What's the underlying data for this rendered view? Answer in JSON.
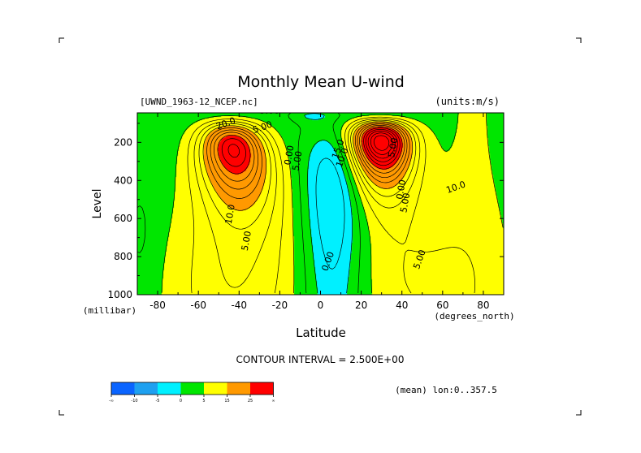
{
  "chart_data": {
    "type": "heatmap",
    "subtype": "filled-contour",
    "title": "Monthly Mean U-wind",
    "dataset_label": "[UWND_1963-12_NCEP.nc]",
    "units_label": "(units:m/s)",
    "xlabel": "Latitude",
    "x_unit_label": "(degrees_north)",
    "ylabel": "Level",
    "y_unit_label": "(millibar)",
    "xlim": [
      -90,
      90
    ],
    "ylim": [
      1000,
      10
    ],
    "y_inverted": true,
    "x_ticks": [
      -80,
      -60,
      -40,
      -20,
      0,
      20,
      40,
      60,
      80
    ],
    "y_ticks": [
      200,
      400,
      600,
      800,
      1000
    ],
    "contour_interval_text": "CONTOUR INTERVAL = 2.500E+00",
    "mean_text": "(mean) lon:0..357.5",
    "contour_labels": [
      "5.00",
      "20.0",
      "5.00",
      "10.0",
      "5.00",
      "0.00",
      "5.00",
      "0.00",
      "15.0",
      "10.0",
      "0.00",
      "5.00",
      "5.00",
      "10.0",
      "5.00"
    ],
    "colorbar": {
      "bins": [
        {
          "range": "< -10",
          "color": "#0a64ff"
        },
        {
          "range": "-10 to -5",
          "color": "#1ea0f0"
        },
        {
          "range": "-5 to 0",
          "color": "#00f0ff"
        },
        {
          "range": "0 to 5",
          "color": "#00e600"
        },
        {
          "range": "5 to 15",
          "color": "#ffff00"
        },
        {
          "range": "15 to 25",
          "color": "#ff9900"
        },
        {
          "range": "> 25",
          "color": "#ff0000"
        }
      ],
      "tick_labels": [
        "-∞",
        "-10",
        "-5",
        "0",
        "5",
        "15",
        "25",
        "∞"
      ]
    },
    "jets": [
      {
        "name": "",
        "lat": -43,
        "level": 240,
        "max": 27
      },
      {
        "name": "",
        "lat": 30,
        "level": 200,
        "max": 37
      }
    ]
  }
}
